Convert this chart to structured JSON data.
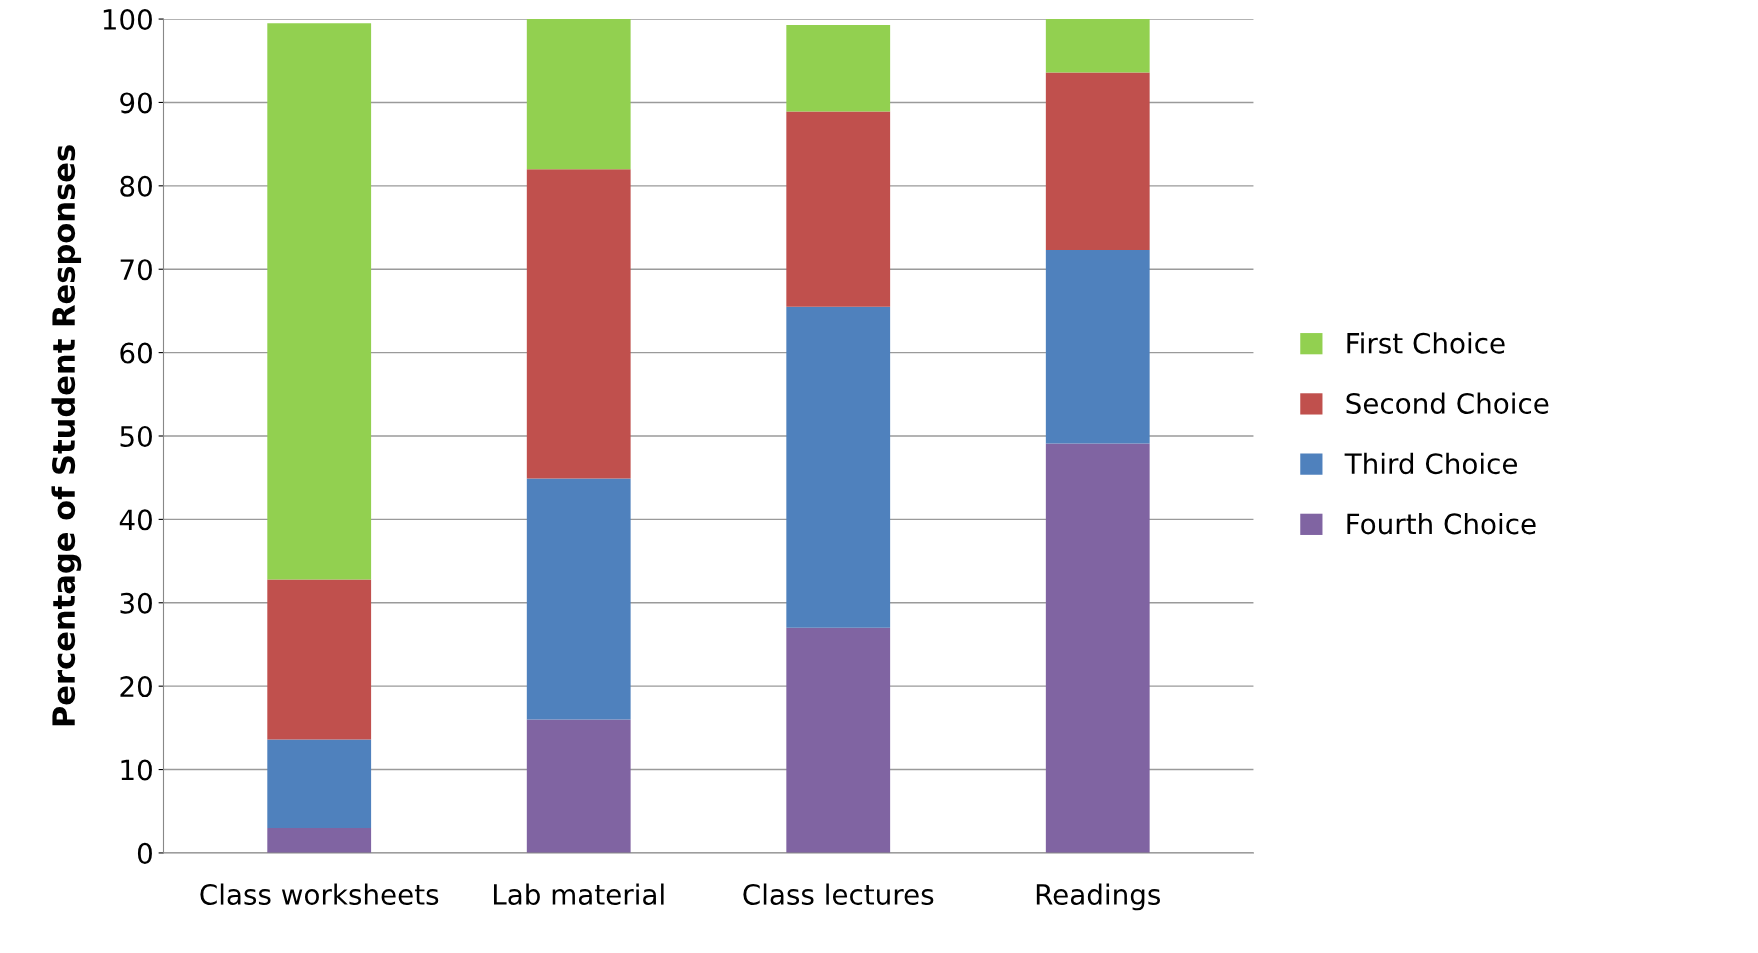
{
  "chart_data": {
    "type": "bar",
    "stacked": true,
    "ylabel": "Percentage of Student Responses",
    "categories": [
      "Class worksheets",
      "Lab material",
      "Class lectures",
      "Readings"
    ],
    "series": [
      {
        "name": "Fourth Choice",
        "color": "#8064a2",
        "values": [
          3.0,
          16.0,
          27.0,
          49.1
        ]
      },
      {
        "name": "Third Choice",
        "color": "#4f81bd",
        "values": [
          10.6,
          28.9,
          38.5,
          23.2
        ]
      },
      {
        "name": "Second Choice",
        "color": "#c0504d",
        "values": [
          19.2,
          37.1,
          23.4,
          21.3
        ]
      },
      {
        "name": "First Choice",
        "color": "#92d050",
        "values": [
          66.7,
          18.0,
          10.4,
          6.4
        ]
      }
    ],
    "ylim": [
      0,
      100
    ],
    "yticks": [
      0,
      10,
      20,
      30,
      40,
      50,
      60,
      70,
      80,
      90,
      100
    ],
    "grid": "y",
    "legend": "right"
  }
}
